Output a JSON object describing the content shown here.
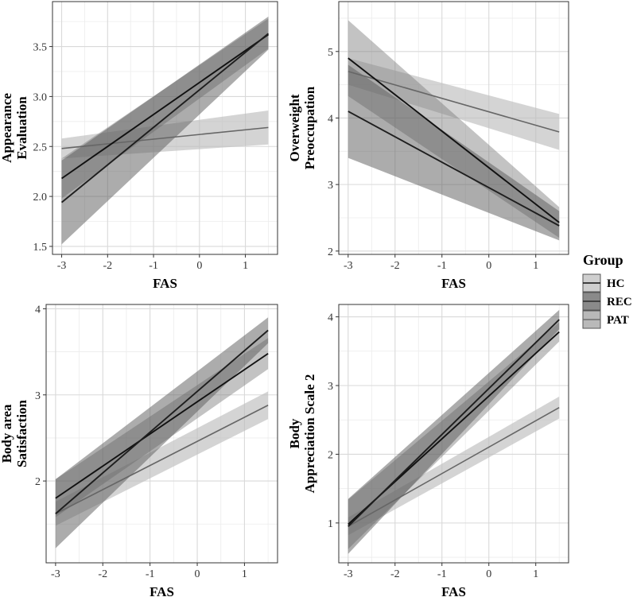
{
  "chart_data": [
    {
      "type": "line",
      "panel": "top-left",
      "xlabel": "FAS",
      "ylabel_lines": [
        "Appearance",
        "Evaluation"
      ],
      "xlim": [
        -3.2,
        1.7
      ],
      "ylim": [
        1.42,
        3.95
      ],
      "x_ticks": [
        -3,
        -2,
        -1,
        0,
        1
      ],
      "x_tick_labels": [
        "-3",
        "-2",
        "-1",
        "0",
        "1"
      ],
      "y_ticks": [
        1.5,
        2.0,
        2.5,
        3.0,
        3.5
      ],
      "y_tick_labels": [
        "1.5",
        "2.0",
        "2.5",
        "3.0",
        "3.5"
      ],
      "series": [
        {
          "name": "HC",
          "x": [
            -3,
            1.5
          ],
          "y": [
            2.18,
            3.62
          ],
          "ci_lower": [
            1.98,
            3.48
          ],
          "ci_upper": [
            2.38,
            3.78
          ]
        },
        {
          "name": "REC",
          "x": [
            -3,
            1.5
          ],
          "y": [
            1.94,
            3.63
          ],
          "ci_lower": [
            1.52,
            3.47
          ],
          "ci_upper": [
            2.36,
            3.8
          ]
        },
        {
          "name": "PAT",
          "x": [
            -3,
            1.5
          ],
          "y": [
            2.48,
            2.69
          ],
          "ci_lower": [
            2.38,
            2.52
          ],
          "ci_upper": [
            2.58,
            2.86
          ]
        }
      ]
    },
    {
      "type": "line",
      "panel": "top-right",
      "xlabel": "FAS",
      "ylabel_lines": [
        "Overweight",
        "Preoccupation"
      ],
      "xlim": [
        -3.2,
        1.7
      ],
      "ylim": [
        1.95,
        5.75
      ],
      "x_ticks": [
        -3,
        -2,
        -1,
        0,
        1
      ],
      "x_tick_labels": [
        "-3",
        "-2",
        "-1",
        "0",
        "1"
      ],
      "y_ticks": [
        2,
        3,
        4,
        5
      ],
      "y_tick_labels": [
        "2",
        "3",
        "4",
        "5"
      ],
      "series": [
        {
          "name": "HC",
          "x": [
            -3,
            1.5
          ],
          "y": [
            4.9,
            2.43
          ],
          "ci_lower": [
            4.33,
            2.2
          ],
          "ci_upper": [
            5.47,
            2.66
          ]
        },
        {
          "name": "REC",
          "x": [
            -3,
            1.5
          ],
          "y": [
            4.1,
            2.38
          ],
          "ci_lower": [
            3.4,
            2.16
          ],
          "ci_upper": [
            4.8,
            2.6
          ]
        },
        {
          "name": "PAT",
          "x": [
            -3,
            1.5
          ],
          "y": [
            4.7,
            3.79
          ],
          "ci_lower": [
            4.5,
            3.52
          ],
          "ci_upper": [
            4.9,
            4.06
          ]
        }
      ]
    },
    {
      "type": "line",
      "panel": "bottom-left",
      "xlabel": "FAS",
      "ylabel_lines": [
        "Body area",
        "Satisfaction"
      ],
      "xlim": [
        -3.2,
        1.7
      ],
      "ylim": [
        1.05,
        4.05
      ],
      "x_ticks": [
        -3,
        -2,
        -1,
        0,
        1
      ],
      "x_tick_labels": [
        "-3",
        "-2",
        "-1",
        "0",
        "1"
      ],
      "y_ticks": [
        2,
        3,
        4
      ],
      "y_tick_labels": [
        "2",
        "3",
        "4"
      ],
      "series": [
        {
          "name": "HC",
          "x": [
            -3,
            1.5
          ],
          "y": [
            1.8,
            3.48
          ],
          "ci_lower": [
            1.58,
            3.3
          ],
          "ci_upper": [
            2.02,
            3.66
          ]
        },
        {
          "name": "REC",
          "x": [
            -3,
            1.5
          ],
          "y": [
            1.62,
            3.75
          ],
          "ci_lower": [
            1.22,
            3.6
          ],
          "ci_upper": [
            2.02,
            3.9
          ]
        },
        {
          "name": "PAT",
          "x": [
            -3,
            1.5
          ],
          "y": [
            1.62,
            2.88
          ],
          "ci_lower": [
            1.48,
            2.72
          ],
          "ci_upper": [
            1.76,
            3.04
          ]
        }
      ]
    },
    {
      "type": "line",
      "panel": "bottom-right",
      "xlabel": "FAS",
      "ylabel_lines": [
        "Body",
        "Appreciation Scale 2"
      ],
      "xlim": [
        -3.2,
        1.7
      ],
      "ylim": [
        0.42,
        4.18
      ],
      "x_ticks": [
        -3,
        -2,
        -1,
        0,
        1
      ],
      "x_tick_labels": [
        "-3",
        "-2",
        "-1",
        "0",
        "1"
      ],
      "y_ticks": [
        1,
        2,
        3,
        4
      ],
      "y_tick_labels": [
        "1",
        "2",
        "3",
        "4"
      ],
      "series": [
        {
          "name": "HC",
          "x": [
            -3,
            1.5
          ],
          "y": [
            0.98,
            3.78
          ],
          "ci_lower": [
            0.62,
            3.64
          ],
          "ci_upper": [
            1.34,
            3.92
          ]
        },
        {
          "name": "REC",
          "x": [
            -3,
            1.5
          ],
          "y": [
            0.95,
            3.96
          ],
          "ci_lower": [
            0.55,
            3.82
          ],
          "ci_upper": [
            1.35,
            4.1
          ]
        },
        {
          "name": "PAT",
          "x": [
            -3,
            1.5
          ],
          "y": [
            0.95,
            2.68
          ],
          "ci_lower": [
            0.82,
            2.52
          ],
          "ci_upper": [
            1.08,
            2.84
          ]
        }
      ]
    }
  ],
  "legend": {
    "title": "Group",
    "placement": "right",
    "items": [
      {
        "name": "HC",
        "label": "HC",
        "line_color": "#111111",
        "fill_color": "#cfcfcf"
      },
      {
        "name": "REC",
        "label": "REC",
        "line_color": "#2b2b2b",
        "fill_color": "#8a8a8a"
      },
      {
        "name": "PAT",
        "label": "PAT",
        "line_color": "#6e6e6e",
        "fill_color": "#b9b9b9"
      }
    ]
  },
  "colors": {
    "HC": {
      "line": "#111111",
      "band": "#7a7a7a",
      "band_opacity": 0.45
    },
    "REC": {
      "line": "#1e1e1e",
      "band": "#5a5a5a",
      "band_opacity": 0.5
    },
    "PAT": {
      "line": "#666666",
      "band": "#bdbdbd",
      "band_opacity": 0.65
    },
    "grid": "#d9d9d9",
    "panel_border": "#333333"
  }
}
